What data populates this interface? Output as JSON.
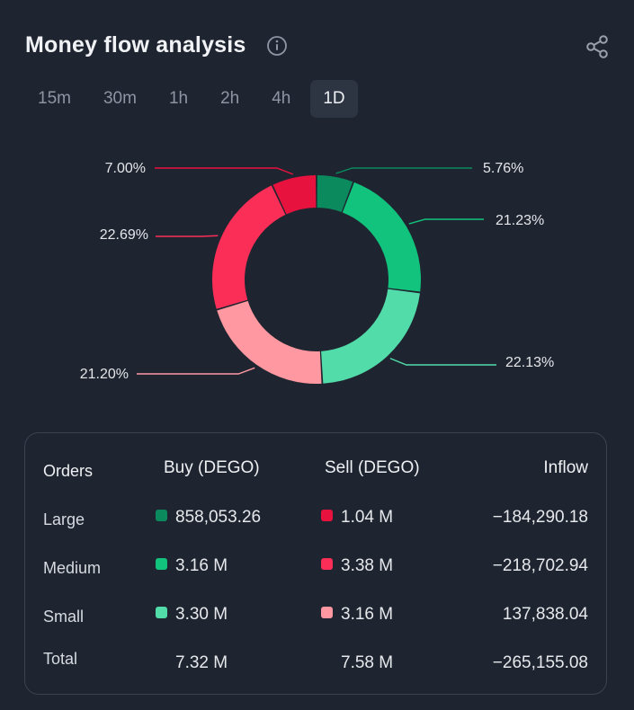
{
  "header": {
    "title": "Money flow analysis",
    "info_icon": "info-icon",
    "share_icon": "share-icon"
  },
  "tabs": [
    {
      "label": "15m",
      "active": false
    },
    {
      "label": "30m",
      "active": false
    },
    {
      "label": "1h",
      "active": false
    },
    {
      "label": "2h",
      "active": false
    },
    {
      "label": "4h",
      "active": false
    },
    {
      "label": "1D",
      "active": true
    }
  ],
  "colors": {
    "large_buy": "#0b8a5e",
    "medium_buy": "#12c37d",
    "small_buy": "#52dcaa",
    "large_sell": "#e8123f",
    "medium_sell": "#fb2e58",
    "small_sell": "#ff98a0"
  },
  "chart_data": {
    "type": "pie",
    "donut": true,
    "slices": [
      {
        "label": "5.76%",
        "value": 5.76,
        "color": "#0b8a5e"
      },
      {
        "label": "21.23%",
        "value": 21.23,
        "color": "#12c37d"
      },
      {
        "label": "22.13%",
        "value": 22.13,
        "color": "#52dcaa"
      },
      {
        "label": "21.20%",
        "value": 21.2,
        "color": "#ff98a0"
      },
      {
        "label": "22.69%",
        "value": 22.69,
        "color": "#fb2e58"
      },
      {
        "label": "7.00%",
        "value": 7.0,
        "color": "#e8123f"
      }
    ]
  },
  "table": {
    "headers": {
      "orders": "Orders",
      "buy": "Buy (DEGO)",
      "sell": "Sell (DEGO)",
      "inflow": "Inflow"
    },
    "rows": [
      {
        "label": "Large",
        "buy": "858,053.26",
        "sell": "1.04 M",
        "inflow": "−184,290.18"
      },
      {
        "label": "Medium",
        "buy": "3.16 M",
        "sell": "3.38 M",
        "inflow": "−218,702.94"
      },
      {
        "label": "Small",
        "buy": "3.30 M",
        "sell": "3.16 M",
        "inflow": "137,838.04"
      }
    ],
    "total": {
      "label": "Total",
      "buy": "7.32 M",
      "sell": "7.58 M",
      "inflow": "−265,155.08"
    }
  }
}
